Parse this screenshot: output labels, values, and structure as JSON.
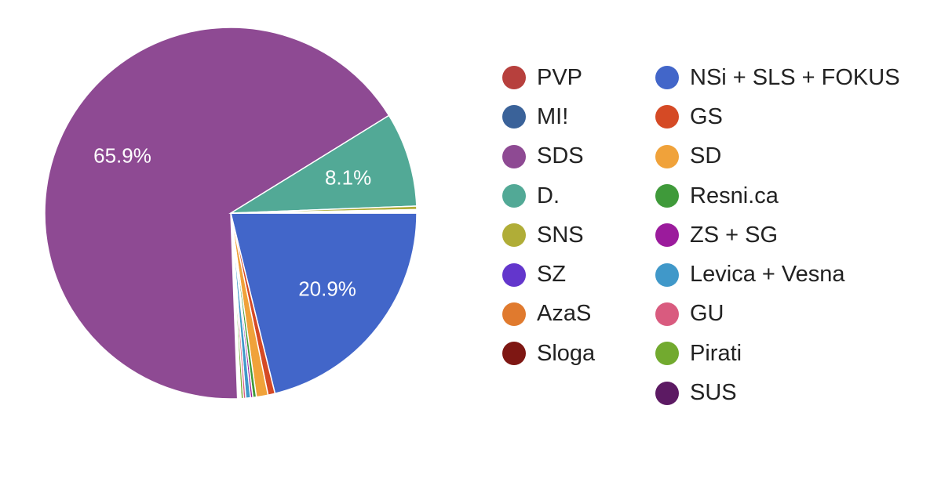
{
  "chart_data": {
    "type": "pie",
    "title": "",
    "start_label": "NSi + SLS + FOKUS",
    "slices": [
      {
        "name": "NSi + SLS + FOKUS",
        "value": 20.9,
        "color": "#4266c9",
        "label": "20.9%"
      },
      {
        "name": "GS",
        "value": 0.6,
        "color": "#d54a25",
        "label": ""
      },
      {
        "name": "SD",
        "value": 1.0,
        "color": "#f0a23a",
        "label": ""
      },
      {
        "name": "Resni.ca",
        "value": 0.3,
        "color": "#3f9a3a",
        "label": ""
      },
      {
        "name": "ZS + SG",
        "value": 0.2,
        "color": "#9b1b9c",
        "label": ""
      },
      {
        "name": "Levica + Vesna",
        "value": 0.4,
        "color": "#4098c9",
        "label": ""
      },
      {
        "name": "GU",
        "value": 0.2,
        "color": "#d95b7f",
        "label": ""
      },
      {
        "name": "Pirati",
        "value": 0.2,
        "color": "#72aa2f",
        "label": ""
      },
      {
        "name": "SUS",
        "value": 0.1,
        "color": "#5c1a63",
        "label": ""
      },
      {
        "name": "PVP",
        "value": 0.1,
        "color": "#b7403d",
        "label": ""
      },
      {
        "name": "MI!",
        "value": 0.1,
        "color": "#3a6299",
        "label": ""
      },
      {
        "name": "SDS",
        "value": 65.9,
        "color": "#8e4a93",
        "label": "65.9%"
      },
      {
        "name": "D.",
        "value": 8.1,
        "color": "#52a996",
        "label": "8.1%"
      },
      {
        "name": "SNS",
        "value": 0.3,
        "color": "#b0ad37",
        "label": ""
      },
      {
        "name": "SZ",
        "value": 0.1,
        "color": "#6336cc",
        "label": ""
      },
      {
        "name": "AzaS",
        "value": 0.1,
        "color": "#e07a2e",
        "label": ""
      },
      {
        "name": "Sloga",
        "value": 0.1,
        "color": "#7e1713",
        "label": ""
      }
    ],
    "legend": {
      "placement": "right",
      "columns": [
        [
          {
            "name": "PVP",
            "color": "#b7403d"
          },
          {
            "name": "MI!",
            "color": "#3a6299"
          },
          {
            "name": "SDS",
            "color": "#8e4a93"
          },
          {
            "name": "D.",
            "color": "#52a996"
          },
          {
            "name": "SNS",
            "color": "#b0ad37"
          },
          {
            "name": "SZ",
            "color": "#6336cc"
          },
          {
            "name": "AzaS",
            "color": "#e07a2e"
          },
          {
            "name": "Sloga",
            "color": "#7e1713"
          }
        ],
        [
          {
            "name": "NSi + SLS + FOKUS",
            "color": "#4266c9"
          },
          {
            "name": "GS",
            "color": "#d54a25"
          },
          {
            "name": "SD",
            "color": "#f0a23a"
          },
          {
            "name": "Resni.ca",
            "color": "#3f9a3a"
          },
          {
            "name": "ZS + SG",
            "color": "#9b1b9c"
          },
          {
            "name": "Levica + Vesna",
            "color": "#4098c9"
          },
          {
            "name": "GU",
            "color": "#d95b7f"
          },
          {
            "name": "Pirati",
            "color": "#72aa2f"
          },
          {
            "name": "SUS",
            "color": "#5c1a63"
          }
        ]
      ]
    }
  }
}
